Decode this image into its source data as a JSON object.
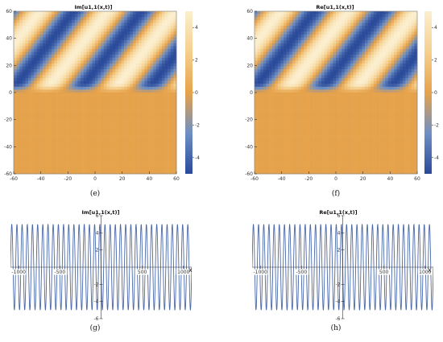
{
  "colors": {
    "dark_blue": "#2a4a9a",
    "mid_blue": "#4670b4",
    "light_blue": "#9fb6d2",
    "cream": "#fbefcf",
    "light_orange": "#f5cf8e",
    "orange": "#e6a24a",
    "line_blue": "#4b69a8"
  },
  "chart_data": [
    {
      "type": "heatmap",
      "title": "Im[u1,1(x,t)]",
      "panel_label": "(e)",
      "x_ticks": [
        -60,
        -40,
        -20,
        0,
        20,
        40,
        60
      ],
      "y_ticks": [
        60,
        40,
        20,
        0,
        -20,
        -40,
        -60
      ],
      "xlim": [
        -60,
        60
      ],
      "ylim": [
        -60,
        60
      ],
      "colorbar": {
        "ticks": [
          4,
          2,
          0,
          -2,
          -4
        ],
        "range": [
          -5,
          5
        ]
      },
      "pattern": "diagonal bands between -5 and 5 for y > 0, flat value about 0 for y < 0"
    },
    {
      "type": "heatmap",
      "title": "Re[u1,1(x,t)]",
      "panel_label": "(f)",
      "x_ticks": [
        -60,
        -40,
        -20,
        0,
        20,
        40,
        60
      ],
      "y_ticks": [
        60,
        40,
        20,
        0,
        -20,
        -40,
        -60
      ],
      "xlim": [
        -60,
        60
      ],
      "ylim": [
        -60,
        60
      ],
      "colorbar": {
        "ticks": [
          4,
          2,
          0,
          -2,
          -4
        ],
        "range": [
          -5,
          5
        ]
      },
      "pattern": "diagonal bands between -5 and 5 for y > 0, flat value about 0 for y < 0"
    },
    {
      "type": "line",
      "title": "Im[u1,1(x,t)]",
      "panel_label": "(g)",
      "xlabel": "x",
      "x_ticks": [
        -1000,
        -500,
        500,
        1000
      ],
      "x_tick_labels": [
        "-1000",
        "-500",
        "500",
        "1000"
      ],
      "y_ticks": [
        6,
        4,
        2,
        -2,
        -4,
        -6
      ],
      "y_tick_labels": [
        "6",
        "4",
        "2",
        "-2",
        "-4",
        "-6"
      ],
      "xlim": [
        -1100,
        1100
      ],
      "ylim": [
        -6,
        6
      ],
      "series": [
        {
          "function": "sinusoid",
          "amplitude": 5,
          "cycles_over_range": 35
        }
      ]
    },
    {
      "type": "line",
      "title": "Re[u1,1(x,t)]",
      "panel_label": "(h)",
      "xlabel": "x",
      "x_ticks": [
        -1000,
        -500,
        500,
        1000
      ],
      "x_tick_labels": [
        "-1000",
        "-500",
        "500",
        "1000"
      ],
      "y_ticks": [
        6,
        4,
        2,
        -2,
        -4,
        -6
      ],
      "y_tick_labels": [
        "6",
        "4",
        "2",
        "-2",
        "-4",
        "-6"
      ],
      "xlim": [
        -1100,
        1100
      ],
      "ylim": [
        -6,
        6
      ],
      "series": [
        {
          "function": "sinusoid",
          "amplitude": 5,
          "cycles_over_range": 35
        }
      ]
    }
  ]
}
